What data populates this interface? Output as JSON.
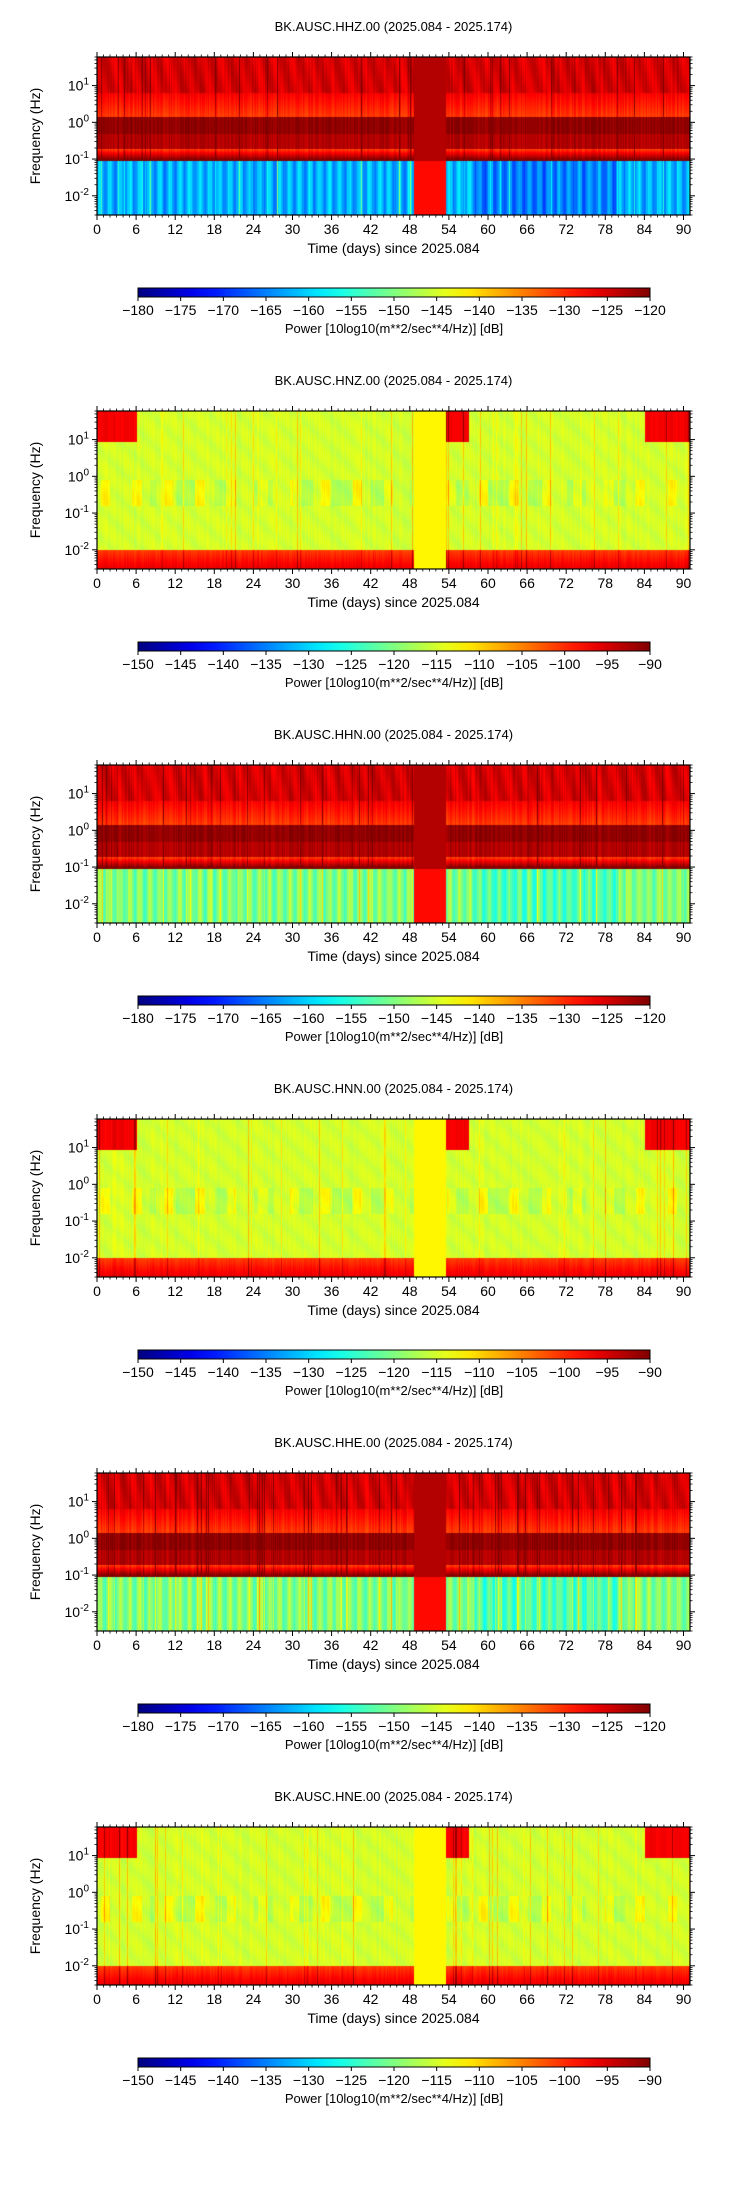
{
  "chart_data": [
    {
      "type": "heatmap",
      "title": "BK.AUSC.HHZ.00 (2025.084 - 2025.174)",
      "xlabel": "Time (days) since 2025.084",
      "ylabel": "Frequency (Hz)",
      "xlim": [
        0,
        91
      ],
      "ylim": [
        0.003,
        60
      ],
      "y_scale": "log",
      "x_ticks": [
        "0",
        "6",
        "12",
        "18",
        "24",
        "30",
        "36",
        "42",
        "48",
        "54",
        "60",
        "66",
        "72",
        "78",
        "84",
        "90"
      ],
      "y_ticks": [
        {
          "base": "10",
          "exp": "1"
        },
        {
          "base": "10",
          "exp": "0"
        },
        {
          "base": "10",
          "exp": "-1"
        },
        {
          "base": "10",
          "exp": "-2"
        }
      ],
      "colorbar": {
        "label": "Power [10log10(m**2/sec**4/Hz)] [dB]",
        "range": [
          -180,
          -120
        ],
        "ticks": [
          "−180",
          "−175",
          "−170",
          "−165",
          "−160",
          "−155",
          "−150",
          "−145",
          "−140",
          "−135",
          "−130",
          "−125",
          "−120"
        ],
        "colormap": "jet"
      },
      "profile": "broadband_h",
      "quiet_band_db": -162
    },
    {
      "type": "heatmap",
      "title": "BK.AUSC.HNZ.00 (2025.084 - 2025.174)",
      "xlabel": "Time (days) since 2025.084",
      "ylabel": "Frequency (Hz)",
      "xlim": [
        0,
        91
      ],
      "ylim": [
        0.003,
        60
      ],
      "y_scale": "log",
      "x_ticks": [
        "0",
        "6",
        "12",
        "18",
        "24",
        "30",
        "36",
        "42",
        "48",
        "54",
        "60",
        "66",
        "72",
        "78",
        "84",
        "90"
      ],
      "y_ticks": [
        {
          "base": "10",
          "exp": "1"
        },
        {
          "base": "10",
          "exp": "0"
        },
        {
          "base": "10",
          "exp": "-1"
        },
        {
          "base": "10",
          "exp": "-2"
        }
      ],
      "colorbar": {
        "label": "Power [10log10(m**2/sec**4/Hz)] [dB]",
        "range": [
          -150,
          -90
        ],
        "ticks": [
          "−150",
          "−145",
          "−140",
          "−135",
          "−130",
          "−125",
          "−120",
          "−115",
          "−110",
          "−105",
          "−100",
          "−95",
          "−90"
        ],
        "colormap": "jet"
      },
      "profile": "strongmotion_n"
    },
    {
      "type": "heatmap",
      "title": "BK.AUSC.HHN.00 (2025.084 - 2025.174)",
      "xlabel": "Time (days) since 2025.084",
      "ylabel": "Frequency (Hz)",
      "xlim": [
        0,
        91
      ],
      "ylim": [
        0.003,
        60
      ],
      "y_scale": "log",
      "x_ticks": [
        "0",
        "6",
        "12",
        "18",
        "24",
        "30",
        "36",
        "42",
        "48",
        "54",
        "60",
        "66",
        "72",
        "78",
        "84",
        "90"
      ],
      "y_ticks": [
        {
          "base": "10",
          "exp": "1"
        },
        {
          "base": "10",
          "exp": "0"
        },
        {
          "base": "10",
          "exp": "-1"
        },
        {
          "base": "10",
          "exp": "-2"
        }
      ],
      "colorbar": {
        "label": "Power [10log10(m**2/sec**4/Hz)] [dB]",
        "range": [
          -180,
          -120
        ],
        "ticks": [
          "−180",
          "−175",
          "−170",
          "−165",
          "−160",
          "−155",
          "−150",
          "−145",
          "−140",
          "−135",
          "−130",
          "−125",
          "−120"
        ],
        "colormap": "jet"
      },
      "profile": "broadband_h",
      "quiet_band_db": -150
    },
    {
      "type": "heatmap",
      "title": "BK.AUSC.HNN.00 (2025.084 - 2025.174)",
      "xlabel": "Time (days) since 2025.084",
      "ylabel": "Frequency (Hz)",
      "xlim": [
        0,
        91
      ],
      "ylim": [
        0.003,
        60
      ],
      "y_scale": "log",
      "x_ticks": [
        "0",
        "6",
        "12",
        "18",
        "24",
        "30",
        "36",
        "42",
        "48",
        "54",
        "60",
        "66",
        "72",
        "78",
        "84",
        "90"
      ],
      "y_ticks": [
        {
          "base": "10",
          "exp": "1"
        },
        {
          "base": "10",
          "exp": "0"
        },
        {
          "base": "10",
          "exp": "-1"
        },
        {
          "base": "10",
          "exp": "-2"
        }
      ],
      "colorbar": {
        "label": "Power [10log10(m**2/sec**4/Hz)] [dB]",
        "range": [
          -150,
          -90
        ],
        "ticks": [
          "−150",
          "−145",
          "−140",
          "−135",
          "−130",
          "−125",
          "−120",
          "−115",
          "−110",
          "−105",
          "−100",
          "−95",
          "−90"
        ],
        "colormap": "jet"
      },
      "profile": "strongmotion_n"
    },
    {
      "type": "heatmap",
      "title": "BK.AUSC.HHE.00 (2025.084 - 2025.174)",
      "xlabel": "Time (days) since 2025.084",
      "ylabel": "Frequency (Hz)",
      "xlim": [
        0,
        91
      ],
      "ylim": [
        0.003,
        60
      ],
      "y_scale": "log",
      "x_ticks": [
        "0",
        "6",
        "12",
        "18",
        "24",
        "30",
        "36",
        "42",
        "48",
        "54",
        "60",
        "66",
        "72",
        "78",
        "84",
        "90"
      ],
      "y_ticks": [
        {
          "base": "10",
          "exp": "1"
        },
        {
          "base": "10",
          "exp": "0"
        },
        {
          "base": "10",
          "exp": "-1"
        },
        {
          "base": "10",
          "exp": "-2"
        }
      ],
      "colorbar": {
        "label": "Power [10log10(m**2/sec**4/Hz)] [dB]",
        "range": [
          -180,
          -120
        ],
        "ticks": [
          "−180",
          "−175",
          "−170",
          "−165",
          "−160",
          "−155",
          "−150",
          "−145",
          "−140",
          "−135",
          "−130",
          "−125",
          "−120"
        ],
        "colormap": "jet"
      },
      "profile": "broadband_h",
      "quiet_band_db": -150
    },
    {
      "type": "heatmap",
      "title": "BK.AUSC.HNE.00 (2025.084 - 2025.174)",
      "xlabel": "Time (days) since 2025.084",
      "ylabel": "Frequency (Hz)",
      "xlim": [
        0,
        91
      ],
      "ylim": [
        0.003,
        60
      ],
      "y_scale": "log",
      "x_ticks": [
        "0",
        "6",
        "12",
        "18",
        "24",
        "30",
        "36",
        "42",
        "48",
        "54",
        "60",
        "66",
        "72",
        "78",
        "84",
        "90"
      ],
      "y_ticks": [
        {
          "base": "10",
          "exp": "1"
        },
        {
          "base": "10",
          "exp": "0"
        },
        {
          "base": "10",
          "exp": "-1"
        },
        {
          "base": "10",
          "exp": "-2"
        }
      ],
      "colorbar": {
        "label": "Power [10log10(m**2/sec**4/Hz)] [dB]",
        "range": [
          -150,
          -90
        ],
        "ticks": [
          "−150",
          "−145",
          "−140",
          "−135",
          "−130",
          "−125",
          "−120",
          "−115",
          "−110",
          "−105",
          "−100",
          "−95",
          "−90"
        ],
        "colormap": "jet"
      },
      "profile": "strongmotion_n"
    }
  ]
}
